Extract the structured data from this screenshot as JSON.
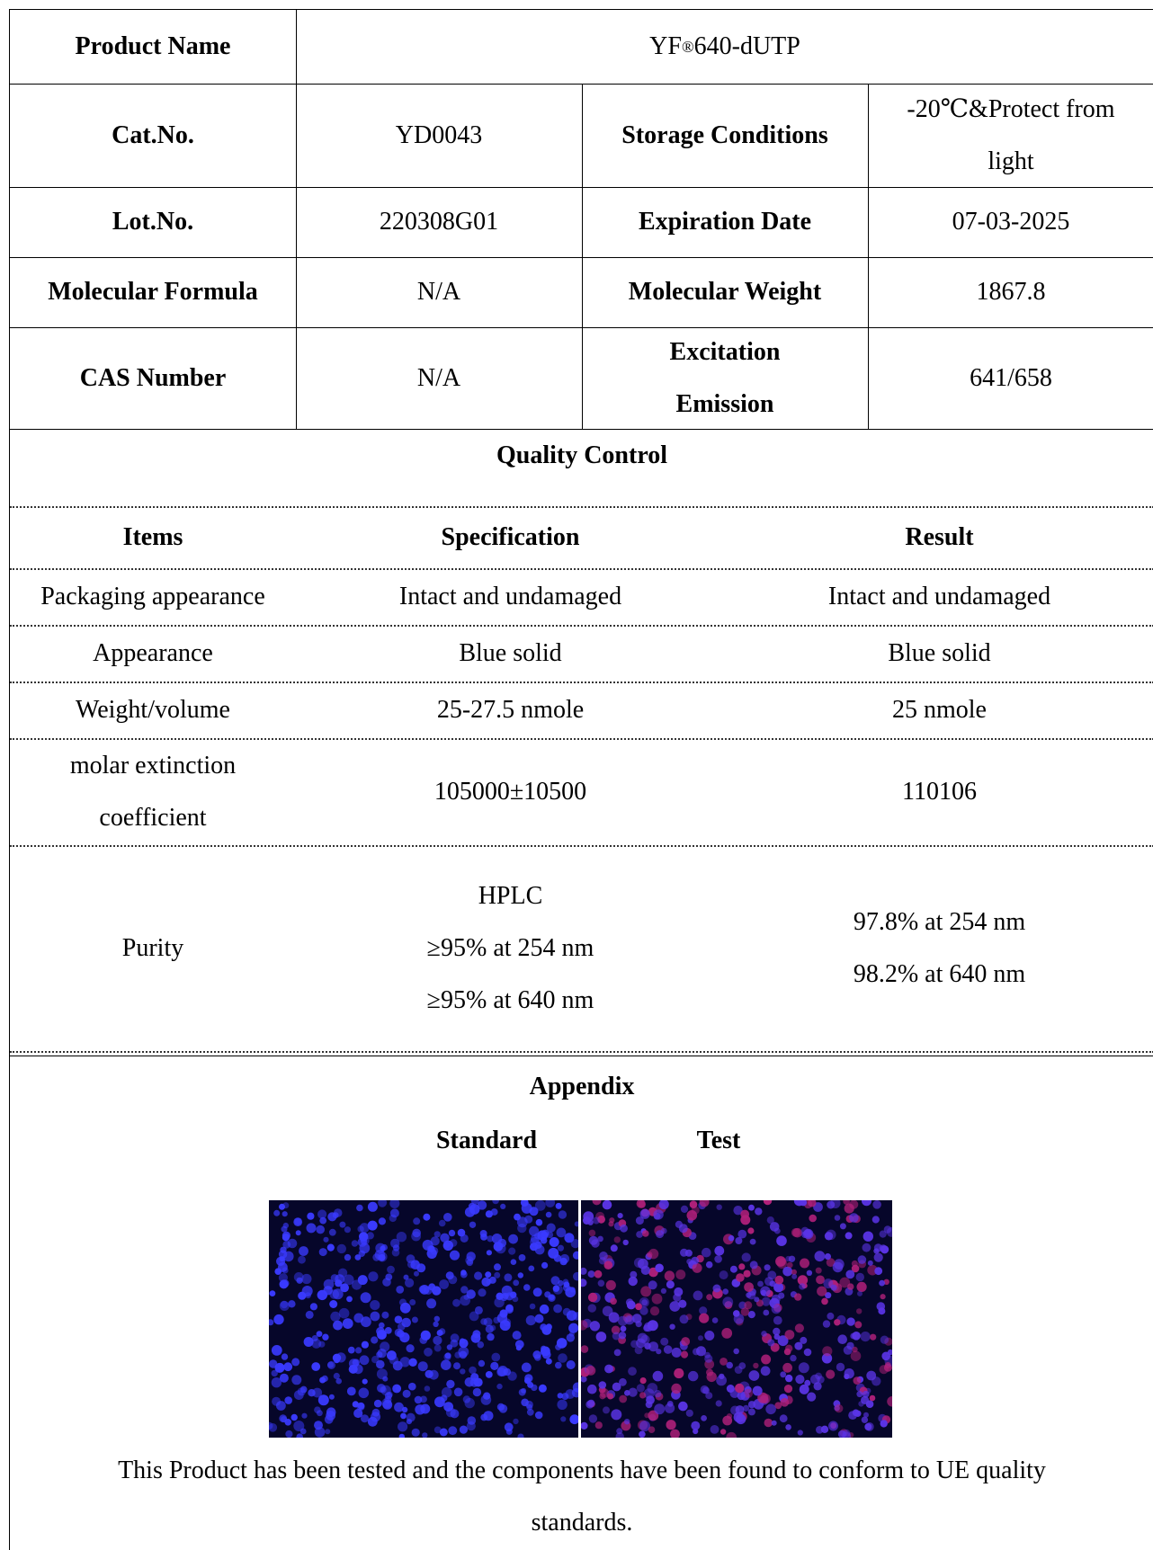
{
  "product_info": {
    "product_name_label": "Product Name",
    "product_name_value_base": "YF",
    "product_name_value_sup": "®",
    "product_name_value_rest": "640-dUTP",
    "cat_no_label": "Cat.No.",
    "cat_no_value": "YD0043",
    "storage_label": "Storage Conditions",
    "storage_value_line1": "-20℃&Protect from",
    "storage_value_line2": "light",
    "lot_no_label": "Lot.No.",
    "lot_no_value": "220308G01",
    "expiration_label": "Expiration Date",
    "expiration_value": "07-03-2025",
    "formula_label": "Molecular Formula",
    "formula_value": "N/A",
    "weight_label": "Molecular Weight",
    "weight_value": "1867.8",
    "cas_label": "CAS Number",
    "cas_value": "N/A",
    "excitation_label_line1": "Excitation",
    "excitation_label_line2": "Emission",
    "excitation_value": "641/658"
  },
  "quality_control": {
    "title": "Quality Control",
    "headers": {
      "items": "Items",
      "specification": "Specification",
      "result": "Result"
    },
    "rows": [
      {
        "item": "Packaging appearance",
        "spec": "Intact and undamaged",
        "result": "Intact and undamaged"
      },
      {
        "item": "Appearance",
        "spec": "Blue solid",
        "result": "Blue solid"
      },
      {
        "item": "Weight/volume",
        "spec": "25-27.5 nmole",
        "result": "25 nmole"
      },
      {
        "item_line1": "molar extinction",
        "item_line2": "coefficient",
        "spec": "105000±10500",
        "result": "110106"
      },
      {
        "item": "Purity",
        "spec_line1": "HPLC",
        "spec_line2": "≥95% at 254 nm",
        "spec_line3": "≥95% at 640 nm",
        "result_line1": "97.8% at 254 nm",
        "result_line2": "98.2% at 640 nm"
      }
    ]
  },
  "appendix": {
    "title": "Appendix",
    "standard_label": "Standard",
    "test_label": "Test",
    "standard_image_icon": "fluorescence-micrograph-blue-nuclei",
    "test_image_icon": "fluorescence-micrograph-blue-red-nuclei",
    "footer_line1": "This Product has been tested and the components have been found to conform to UE quality",
    "footer_line2": "standards."
  },
  "colors": {
    "micrograph_background": "#06062a",
    "standard_nuclei": "#3a3aff",
    "test_nuclei": "#5a34e6",
    "test_red_signal": "#b0207a"
  }
}
